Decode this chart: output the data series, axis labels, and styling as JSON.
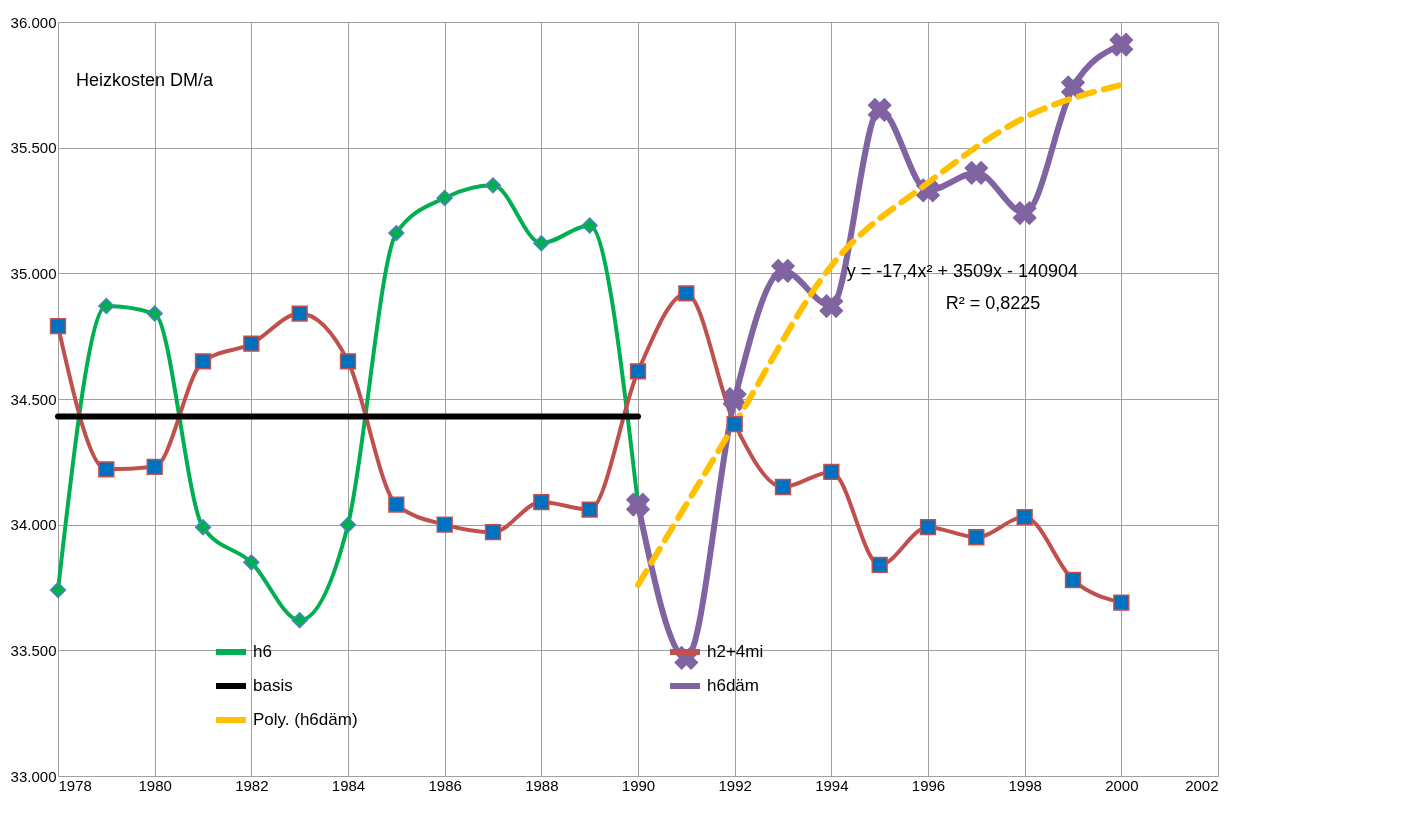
{
  "chart_data": {
    "type": "line",
    "title": "Heizkosten DM/a",
    "xlim": [
      1978,
      2002
    ],
    "xticks": [
      1978,
      1980,
      1982,
      1984,
      1986,
      1988,
      1990,
      1992,
      1994,
      1996,
      1998,
      2000,
      2002
    ],
    "ylim": [
      33000,
      36000
    ],
    "yticks": [
      {
        "value": 33000,
        "label": "33.000"
      },
      {
        "value": 33500,
        "label": "33.500"
      },
      {
        "value": 34000,
        "label": "34.000"
      },
      {
        "value": 34500,
        "label": "34.500"
      },
      {
        "value": 35000,
        "label": "35.000"
      },
      {
        "value": 35500,
        "label": "35.500"
      },
      {
        "value": 36000,
        "label": "36.000"
      }
    ],
    "grid": true,
    "legend": "bottom left",
    "series": [
      {
        "name": "h6",
        "color": "#00b050",
        "marker": "diamond",
        "x": [
          1978,
          1979,
          1980,
          1981,
          1982,
          1983,
          1984,
          1985,
          1986,
          1987,
          1988,
          1989,
          1990
        ],
        "values": [
          33740,
          34870,
          34840,
          33990,
          33850,
          33620,
          34000,
          35160,
          35300,
          35350,
          35120,
          35190,
          34080
        ]
      },
      {
        "name": "h2+4mi",
        "color": "#c0504d",
        "marker": "square",
        "x": [
          1978,
          1979,
          1980,
          1981,
          1982,
          1983,
          1984,
          1985,
          1986,
          1987,
          1988,
          1989,
          1990,
          1991,
          1992,
          1993,
          1994,
          1995,
          1996,
          1997,
          1998,
          1999,
          2000
        ],
        "values": [
          34790,
          34220,
          34230,
          34650,
          34720,
          34840,
          34650,
          34080,
          34000,
          33970,
          34090,
          34060,
          34610,
          34920,
          34400,
          34150,
          34210,
          33840,
          33990,
          33950,
          34030,
          33780,
          33690
        ]
      },
      {
        "name": "basis",
        "color": "#000000",
        "marker": "none",
        "x": [
          1978,
          1990
        ],
        "values": [
          34430,
          34430
        ]
      },
      {
        "name": "h6däm",
        "color": "#8064a2",
        "marker": "cross",
        "x": [
          1990,
          1991,
          1992,
          1993,
          1994,
          1995,
          1996,
          1997,
          1998,
          1999,
          2000
        ],
        "values": [
          34080,
          33470,
          34500,
          35010,
          34870,
          35650,
          35330,
          35400,
          35240,
          35740,
          35910
        ]
      },
      {
        "name": "Poly. (h6däm)",
        "color": "#ffc000",
        "marker": "none",
        "line_style": "dashed",
        "x": [
          1990,
          1992,
          1994,
          1996,
          1998,
          2000
        ],
        "values": [
          33760,
          34400,
          35030,
          35360,
          35620,
          35750
        ]
      }
    ],
    "annotations": [
      "y = -17,4x² + 3509x - 140904",
      "R² = 0,8225"
    ]
  }
}
